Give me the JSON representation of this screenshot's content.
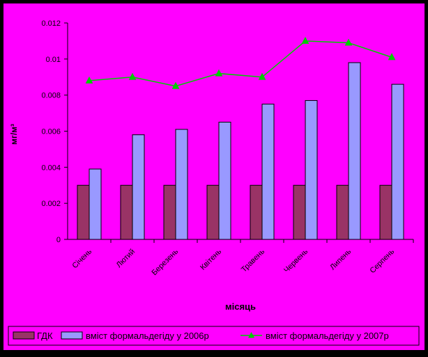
{
  "chart_data": {
    "type": "bar",
    "xlabel": "місяць",
    "ylabel": "мг/м³",
    "ylim": [
      0,
      0.012
    ],
    "yticks": [
      "0",
      "0.002",
      "0.004",
      "0.006",
      "0.008",
      "0.01",
      "0.012"
    ],
    "grid": false,
    "categories": [
      "Січень",
      "Лютий",
      "Березень",
      "Квітень",
      "Травень",
      "Червень",
      "Липень",
      "Серпень"
    ],
    "series": [
      {
        "name": "ГДК",
        "type": "bar",
        "color": "#993366",
        "values": [
          0.003,
          0.003,
          0.003,
          0.003,
          0.003,
          0.003,
          0.003,
          0.003
        ]
      },
      {
        "name": "вміст формальдегіду у 2006р",
        "type": "bar",
        "color": "#9999ff",
        "values": [
          0.0039,
          0.0058,
          0.0061,
          0.0065,
          0.0075,
          0.0077,
          0.0098,
          0.0086
        ]
      },
      {
        "name": "вміст формальдегіду у 2007р",
        "type": "line",
        "color": "#00cc00",
        "values": [
          0.0088,
          0.009,
          0.0085,
          0.0092,
          0.009,
          0.011,
          0.0109,
          0.0101
        ]
      }
    ],
    "legend_position": "bottom",
    "colors": {
      "background": "#ff00ff",
      "frame": "#000000"
    }
  }
}
